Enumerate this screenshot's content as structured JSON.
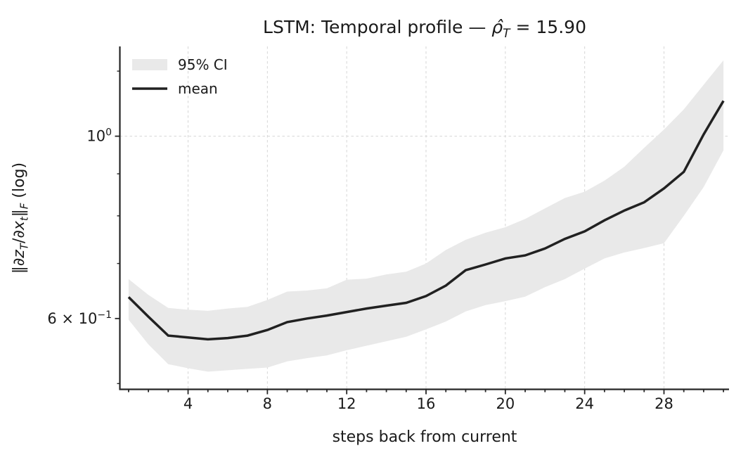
{
  "title": {
    "plain": "LSTM: Temporal profile — ρ̂T = 15.90",
    "parts": [
      {
        "t": "LSTM: Temporal profile — "
      },
      {
        "t": "ρ̂",
        "i": true
      },
      {
        "t": "T",
        "i": true,
        "sub": true
      },
      {
        "t": " = 15.90"
      }
    ]
  },
  "axes": {
    "xlabel": "steps back from current",
    "ylabel_plain": "‖∂zT/∂xt‖F (log)",
    "ylabel_parts": [
      {
        "t": "‖∂"
      },
      {
        "t": "z",
        "i": true
      },
      {
        "t": "T",
        "i": true,
        "sub": true
      },
      {
        "t": "/∂"
      },
      {
        "t": "x",
        "i": true
      },
      {
        "t": "t",
        "i": true,
        "sub": true
      },
      {
        "t": "‖"
      },
      {
        "t": "F",
        "i": true,
        "sub": true
      },
      {
        "t": " (log)"
      }
    ]
  },
  "legend": {
    "ci_label": "95% CI",
    "mean_label": "mean"
  },
  "colors": {
    "band": "#e9e9e9",
    "mean_line": "#212121",
    "grid": "#d6d6d6",
    "spine": "#262626",
    "text": "#1a1a1a"
  },
  "chart_data": {
    "type": "line",
    "title": "LSTM: Temporal profile — ρ̂T = 15.90",
    "xlabel": "steps back from current",
    "ylabel": "‖∂zT/∂xt‖F (log)",
    "yscale": "log",
    "grid": true,
    "legend_position": "upper left",
    "xlim": [
      0.56,
      31.28
    ],
    "ylim": [
      0.492,
      1.286
    ],
    "x": [
      1,
      2,
      3,
      4,
      5,
      6,
      7,
      8,
      9,
      10,
      11,
      12,
      13,
      14,
      15,
      16,
      17,
      18,
      19,
      20,
      21,
      22,
      23,
      24,
      25,
      26,
      27,
      28,
      29,
      30,
      31
    ],
    "series": [
      {
        "name": "mean",
        "values": [
          0.637,
          0.603,
          0.572,
          0.569,
          0.566,
          0.568,
          0.572,
          0.581,
          0.594,
          0.6,
          0.605,
          0.611,
          0.617,
          0.622,
          0.627,
          0.639,
          0.658,
          0.687,
          0.698,
          0.71,
          0.716,
          0.73,
          0.75,
          0.766,
          0.79,
          0.812,
          0.831,
          0.864,
          0.905,
          1.005,
          1.104
        ]
      },
      {
        "name": "ci_lower",
        "values": [
          0.598,
          0.558,
          0.528,
          0.522,
          0.517,
          0.519,
          0.521,
          0.523,
          0.532,
          0.537,
          0.541,
          0.549,
          0.556,
          0.563,
          0.57,
          0.582,
          0.595,
          0.612,
          0.623,
          0.63,
          0.638,
          0.655,
          0.67,
          0.69,
          0.71,
          0.722,
          0.731,
          0.741,
          0.8,
          0.867,
          0.961
        ]
      },
      {
        "name": "ci_upper",
        "values": [
          0.67,
          0.641,
          0.618,
          0.615,
          0.613,
          0.617,
          0.62,
          0.632,
          0.647,
          0.649,
          0.653,
          0.669,
          0.671,
          0.679,
          0.684,
          0.7,
          0.727,
          0.748,
          0.763,
          0.775,
          0.793,
          0.817,
          0.841,
          0.856,
          0.883,
          0.918,
          0.968,
          1.019,
          1.078,
          1.155,
          1.237
        ]
      }
    ],
    "xticks_major": [
      4,
      8,
      12,
      16,
      20,
      24,
      28
    ],
    "xticks_minor_step": 1,
    "yticks_major": [
      {
        "value": 1.0,
        "parts": [
          {
            "t": "10"
          },
          {
            "t": "0",
            "sup": true
          }
        ]
      },
      {
        "value": 0.6,
        "parts": [
          {
            "t": "6 × 10"
          },
          {
            "t": "−1",
            "sup": true
          }
        ]
      }
    ],
    "yticks_minor": [
      0.5,
      0.7,
      0.8,
      0.9,
      1.2
    ]
  }
}
